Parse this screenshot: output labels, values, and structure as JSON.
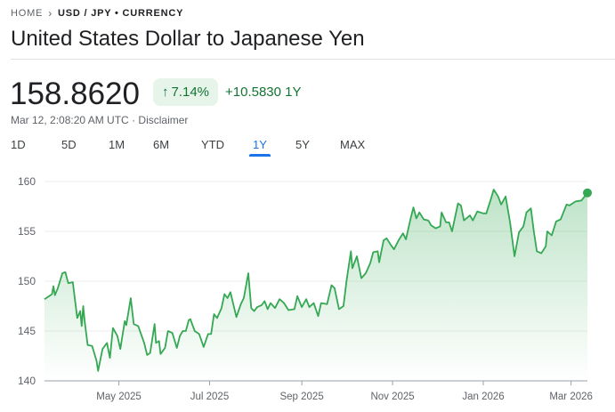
{
  "breadcrumb": {
    "home": "HOME",
    "current": "USD / JPY • CURRENCY"
  },
  "title": "United States Dollar to Japanese Yen",
  "price": "158.8620",
  "change_badge": {
    "icon": "arrow-up-icon",
    "arrow": "↑",
    "percent": "7.14%"
  },
  "change_abs": "+10.5830 1Y",
  "timestamp": "Mar 12, 2:08:20 AM UTC",
  "separator": "·",
  "disclaimer": "Disclaimer",
  "range_tabs": [
    {
      "label": "1D"
    },
    {
      "label": "5D"
    },
    {
      "label": "1M"
    },
    {
      "label": "6M"
    },
    {
      "label": "YTD"
    },
    {
      "label": "1Y",
      "active": true
    },
    {
      "label": "5Y"
    },
    {
      "label": "MAX"
    }
  ],
  "colors": {
    "line": "#34a853",
    "positive": "#137333",
    "badge_bg": "#e6f4ea",
    "active_tab": "#1a73e8"
  },
  "chart_data": {
    "type": "area",
    "ylim": [
      140,
      160
    ],
    "xlim": [
      "2025-03-12",
      "2026-03-12"
    ],
    "yticks": [
      140,
      145,
      150,
      155,
      160
    ],
    "xticks": [
      {
        "date": "2025-05-01",
        "label": "May 2025"
      },
      {
        "date": "2025-07-01",
        "label": "Jul 2025"
      },
      {
        "date": "2025-09-01",
        "label": "Sep 2025"
      },
      {
        "date": "2025-11-01",
        "label": "Nov 2025"
      },
      {
        "date": "2026-01-01",
        "label": "Jan 2026"
      },
      {
        "date": "2026-03-01",
        "label": "Mar 2026"
      }
    ],
    "grid": true,
    "points": [
      [
        "2025-03-12",
        148.2
      ],
      [
        "2025-03-17",
        148.7
      ],
      [
        "2025-03-18",
        149.5
      ],
      [
        "2025-03-19",
        148.6
      ],
      [
        "2025-03-21",
        149.3
      ],
      [
        "2025-03-24",
        150.8
      ],
      [
        "2025-03-26",
        150.9
      ],
      [
        "2025-03-28",
        149.8
      ],
      [
        "2025-03-31",
        149.9
      ],
      [
        "2025-04-03",
        146.3
      ],
      [
        "2025-04-05",
        147.0
      ],
      [
        "2025-04-06",
        145.5
      ],
      [
        "2025-04-07",
        147.5
      ],
      [
        "2025-04-08",
        146.0
      ],
      [
        "2025-04-10",
        143.6
      ],
      [
        "2025-04-13",
        143.5
      ],
      [
        "2025-04-16",
        142.0
      ],
      [
        "2025-04-17",
        141.0
      ],
      [
        "2025-04-20",
        143.2
      ],
      [
        "2025-04-23",
        143.8
      ],
      [
        "2025-04-25",
        142.3
      ],
      [
        "2025-04-27",
        145.3
      ],
      [
        "2025-04-30",
        144.5
      ],
      [
        "2025-05-02",
        143.2
      ],
      [
        "2025-05-05",
        146.0
      ],
      [
        "2025-05-06",
        145.6
      ],
      [
        "2025-05-09",
        148.3
      ],
      [
        "2025-05-11",
        145.7
      ],
      [
        "2025-05-14",
        145.5
      ],
      [
        "2025-05-18",
        143.8
      ],
      [
        "2025-05-20",
        142.6
      ],
      [
        "2025-05-22",
        142.8
      ],
      [
        "2025-05-25",
        145.7
      ],
      [
        "2025-05-26",
        143.8
      ],
      [
        "2025-05-28",
        144.0
      ],
      [
        "2025-05-29",
        142.7
      ],
      [
        "2025-06-01",
        143.3
      ],
      [
        "2025-06-03",
        145.0
      ],
      [
        "2025-06-06",
        144.8
      ],
      [
        "2025-06-09",
        143.3
      ],
      [
        "2025-06-11",
        144.5
      ],
      [
        "2025-06-13",
        145.0
      ],
      [
        "2025-06-15",
        145.0
      ],
      [
        "2025-06-17",
        146.1
      ],
      [
        "2025-06-18",
        146.2
      ],
      [
        "2025-06-21",
        145.0
      ],
      [
        "2025-06-24",
        144.7
      ],
      [
        "2025-06-27",
        143.4
      ],
      [
        "2025-06-30",
        144.7
      ],
      [
        "2025-07-02",
        144.7
      ],
      [
        "2025-07-04",
        146.7
      ],
      [
        "2025-07-06",
        146.3
      ],
      [
        "2025-07-09",
        147.3
      ],
      [
        "2025-07-11",
        148.7
      ],
      [
        "2025-07-13",
        148.3
      ],
      [
        "2025-07-15",
        148.9
      ],
      [
        "2025-07-19",
        146.4
      ],
      [
        "2025-07-22",
        147.7
      ],
      [
        "2025-07-24",
        148.3
      ],
      [
        "2025-07-27",
        150.8
      ],
      [
        "2025-07-29",
        147.3
      ],
      [
        "2025-07-31",
        147.0
      ],
      [
        "2025-08-02",
        147.4
      ],
      [
        "2025-08-05",
        147.6
      ],
      [
        "2025-08-07",
        148.0
      ],
      [
        "2025-08-09",
        147.2
      ],
      [
        "2025-08-11",
        147.8
      ],
      [
        "2025-08-14",
        147.3
      ],
      [
        "2025-08-17",
        148.2
      ],
      [
        "2025-08-20",
        147.8
      ],
      [
        "2025-08-23",
        147.1
      ],
      [
        "2025-08-27",
        147.2
      ],
      [
        "2025-08-29",
        148.5
      ],
      [
        "2025-09-01",
        147.4
      ],
      [
        "2025-09-04",
        148.2
      ],
      [
        "2025-09-06",
        147.4
      ],
      [
        "2025-09-09",
        147.8
      ],
      [
        "2025-09-12",
        146.5
      ],
      [
        "2025-09-14",
        147.8
      ],
      [
        "2025-09-18",
        147.7
      ],
      [
        "2025-09-21",
        149.6
      ],
      [
        "2025-09-23",
        149.3
      ],
      [
        "2025-09-26",
        147.2
      ],
      [
        "2025-09-29",
        147.5
      ],
      [
        "2025-10-01",
        150.0
      ],
      [
        "2025-10-04",
        153.0
      ],
      [
        "2025-10-05",
        151.3
      ],
      [
        "2025-10-08",
        152.5
      ],
      [
        "2025-10-11",
        150.3
      ],
      [
        "2025-10-14",
        150.8
      ],
      [
        "2025-10-17",
        151.8
      ],
      [
        "2025-10-19",
        152.9
      ],
      [
        "2025-10-22",
        153.0
      ],
      [
        "2025-10-23",
        151.9
      ],
      [
        "2025-10-26",
        154.1
      ],
      [
        "2025-10-28",
        154.3
      ],
      [
        "2025-10-31",
        153.6
      ],
      [
        "2025-11-02",
        153.2
      ],
      [
        "2025-11-05",
        154.1
      ],
      [
        "2025-11-08",
        154.8
      ],
      [
        "2025-11-10",
        154.2
      ],
      [
        "2025-11-13",
        156.2
      ],
      [
        "2025-11-15",
        157.4
      ],
      [
        "2025-11-17",
        156.3
      ],
      [
        "2025-11-19",
        156.9
      ],
      [
        "2025-11-22",
        156.2
      ],
      [
        "2025-11-25",
        156.1
      ],
      [
        "2025-11-27",
        155.6
      ],
      [
        "2025-11-30",
        155.3
      ],
      [
        "2025-12-03",
        155.5
      ],
      [
        "2025-12-04",
        156.9
      ],
      [
        "2025-12-07",
        155.9
      ],
      [
        "2025-12-09",
        155.9
      ],
      [
        "2025-12-11",
        155.0
      ],
      [
        "2025-12-15",
        157.8
      ],
      [
        "2025-12-17",
        157.6
      ],
      [
        "2025-12-19",
        156.1
      ],
      [
        "2025-12-23",
        156.6
      ],
      [
        "2025-12-25",
        156.1
      ],
      [
        "2025-12-28",
        157.0
      ],
      [
        "2026-01-01",
        156.8
      ],
      [
        "2026-01-03",
        156.8
      ],
      [
        "2026-01-06",
        158.2
      ],
      [
        "2026-01-08",
        159.2
      ],
      [
        "2026-01-11",
        158.5
      ],
      [
        "2026-01-13",
        157.7
      ],
      [
        "2026-01-16",
        158.5
      ],
      [
        "2026-01-19",
        155.9
      ],
      [
        "2026-01-22",
        152.5
      ],
      [
        "2026-01-25",
        154.9
      ],
      [
        "2026-01-28",
        155.5
      ],
      [
        "2026-01-30",
        156.9
      ],
      [
        "2026-02-02",
        157.3
      ],
      [
        "2026-02-04",
        155.0
      ],
      [
        "2026-02-06",
        153.0
      ],
      [
        "2026-02-09",
        152.8
      ],
      [
        "2026-02-12",
        153.5
      ],
      [
        "2026-02-13",
        155.0
      ],
      [
        "2026-02-16",
        154.6
      ],
      [
        "2026-02-19",
        156.0
      ],
      [
        "2026-02-22",
        156.2
      ],
      [
        "2026-02-26",
        157.7
      ],
      [
        "2026-02-28",
        157.6
      ],
      [
        "2026-03-04",
        158.0
      ],
      [
        "2026-03-08",
        158.1
      ],
      [
        "2026-03-12",
        158.862
      ]
    ]
  }
}
